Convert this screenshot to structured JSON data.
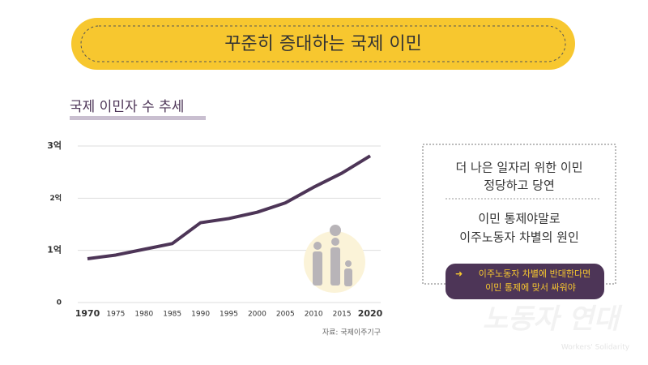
{
  "header": {
    "title": "꾸준히 증대하는 국제 이민"
  },
  "chart_data": {
    "type": "line",
    "title": "국제 이민자 수 추세",
    "categories": [
      "1970",
      "1975",
      "1980",
      "1985",
      "1990",
      "1995",
      "2000",
      "2005",
      "2010",
      "2015",
      "2020"
    ],
    "values": [
      0.84,
      0.91,
      1.02,
      1.13,
      1.53,
      1.61,
      1.73,
      1.91,
      2.21,
      2.48,
      2.81
    ],
    "color": "#4d3557",
    "ylim": [
      0,
      3
    ],
    "yticks": [
      0,
      {
        "value": 1,
        "label": "1억"
      },
      {
        "value": 2,
        "label": "2억"
      },
      {
        "value": 3,
        "label": "3억"
      }
    ],
    "grid": true,
    "source": "자료: 국제이주기구"
  },
  "sidebar": {
    "lines": [
      "더 나은 일자리 위한 이민",
      "정당하고 당연",
      "이민 통제야말로",
      "이주노동자 차별의 원인"
    ],
    "button": [
      "이주노동자 차별에 반대한다면",
      "이민 통제에 맞서 싸워야"
    ]
  },
  "watermark": {
    "title": "노동자 연대",
    "subtitle": "Workers' Solidarity"
  }
}
